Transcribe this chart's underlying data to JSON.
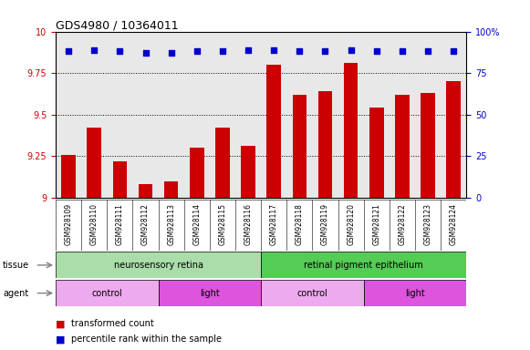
{
  "title": "GDS4980 / 10364011",
  "samples": [
    "GSM928109",
    "GSM928110",
    "GSM928111",
    "GSM928112",
    "GSM928113",
    "GSM928114",
    "GSM928115",
    "GSM928116",
    "GSM928117",
    "GSM928118",
    "GSM928119",
    "GSM928120",
    "GSM928121",
    "GSM928122",
    "GSM928123",
    "GSM928124"
  ],
  "bar_values": [
    9.26,
    9.42,
    9.22,
    9.08,
    9.1,
    9.3,
    9.42,
    9.31,
    9.8,
    9.62,
    9.64,
    9.81,
    9.54,
    9.62,
    9.63,
    9.7
  ],
  "dot_values": [
    88,
    89,
    88,
    87,
    87,
    88,
    88,
    89,
    89,
    88,
    88,
    89,
    88,
    88,
    88,
    88
  ],
  "ylim_left": [
    9.0,
    10.0
  ],
  "ylim_right": [
    0,
    100
  ],
  "yticks_left": [
    9.0,
    9.25,
    9.5,
    9.75,
    10.0
  ],
  "ytick_labels_left": [
    "9",
    "9.25",
    "9.5",
    "9.75",
    "10"
  ],
  "yticks_right": [
    0,
    25,
    50,
    75,
    100
  ],
  "ytick_labels_right": [
    "0",
    "25",
    "50",
    "75",
    "100%"
  ],
  "bar_color": "#cc0000",
  "dot_color": "#0000cc",
  "tissue_groups": [
    {
      "label": "neurosensory retina",
      "start": 0,
      "end": 8,
      "color": "#aaddaa"
    },
    {
      "label": "retinal pigment epithelium",
      "start": 8,
      "end": 16,
      "color": "#55cc55"
    }
  ],
  "agent_groups": [
    {
      "label": "control",
      "start": 0,
      "end": 4,
      "color": "#eeaaee"
    },
    {
      "label": "light",
      "start": 4,
      "end": 8,
      "color": "#dd55dd"
    },
    {
      "label": "control",
      "start": 8,
      "end": 12,
      "color": "#eeaaee"
    },
    {
      "label": "light",
      "start": 12,
      "end": 16,
      "color": "#dd55dd"
    }
  ],
  "background_color": "#ffffff",
  "plot_bg_color": "#e8e8e8"
}
